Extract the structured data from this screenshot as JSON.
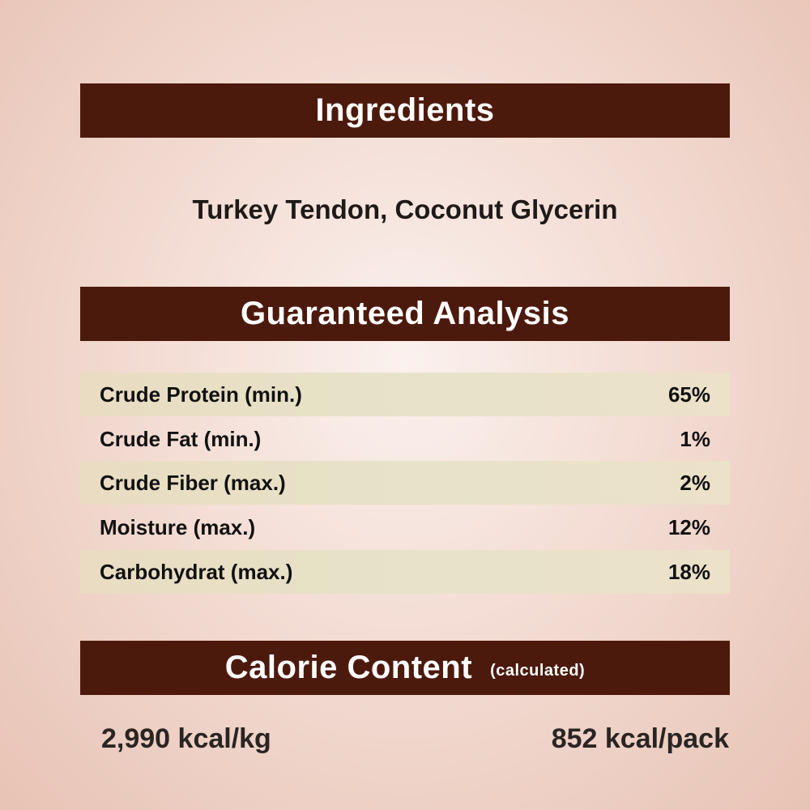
{
  "ingredients": {
    "heading": "Ingredients",
    "text": "Turkey Tendon, Coconut Glycerin"
  },
  "analysis": {
    "heading": "Guaranteed Analysis",
    "rows": [
      {
        "label": "Crude Protein (min.)",
        "value": "65%"
      },
      {
        "label": "Crude Fat (min.)",
        "value": "1%"
      },
      {
        "label": "Crude Fiber (max.)",
        "value": "2%"
      },
      {
        "label": "Moisture (max.)",
        "value": "12%"
      },
      {
        "label": "Carbohydrat (max.)",
        "value": "18%"
      }
    ]
  },
  "calorie": {
    "heading": "Calorie Content",
    "note": "(calculated)",
    "per_kg": "2,990 kcal/kg",
    "per_pack": "852 kcal/pack"
  },
  "colors": {
    "header_bar": "#4c1a0d",
    "row_shade": "#e8e0c6"
  }
}
